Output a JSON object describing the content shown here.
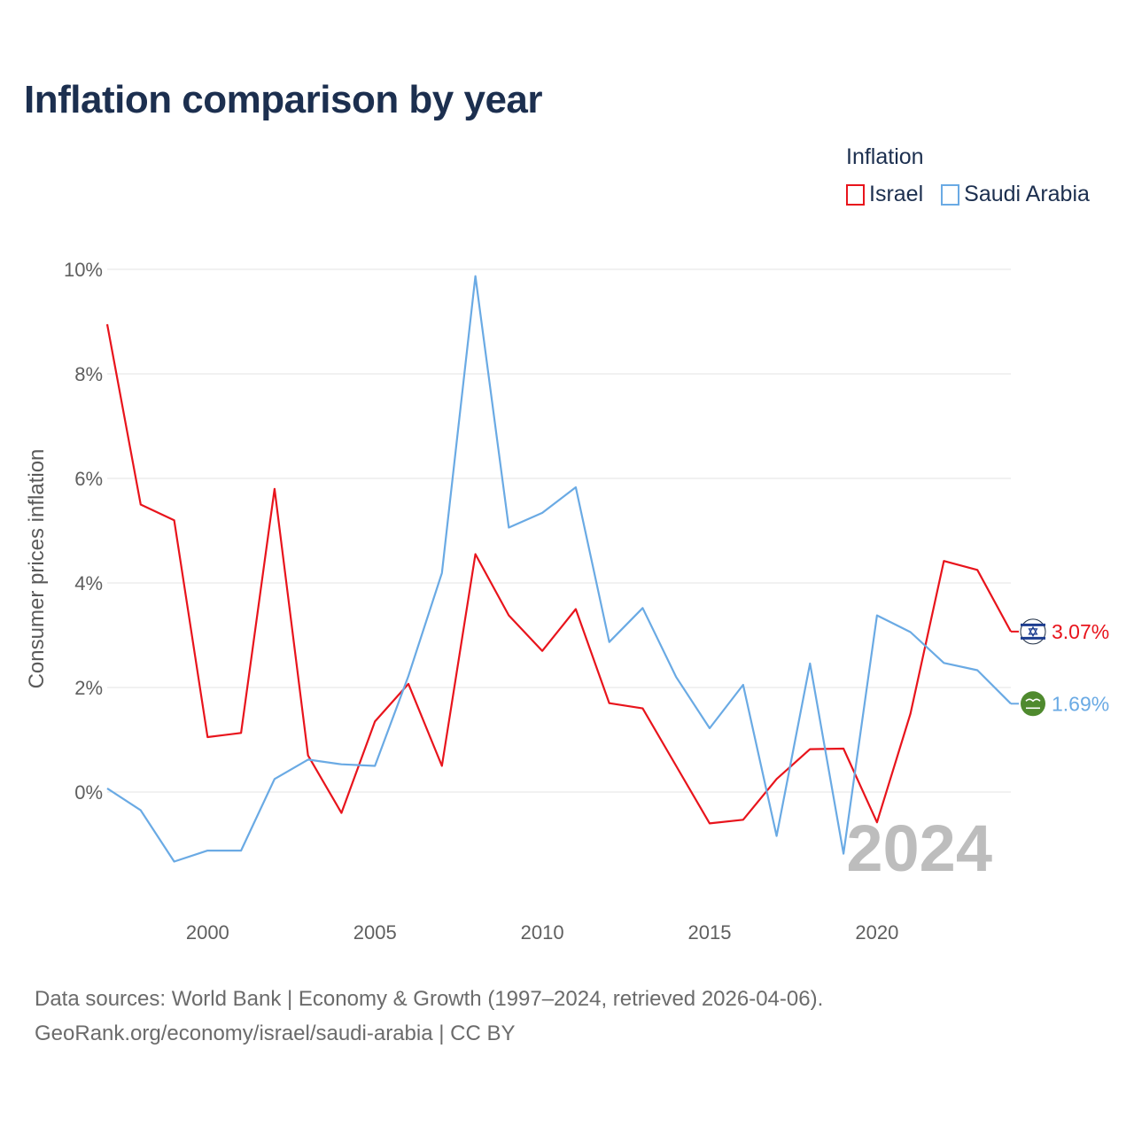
{
  "title": "Inflation comparison by year",
  "legend": {
    "title": "Inflation",
    "items": [
      {
        "label": "Israel",
        "color": "#e8141c"
      },
      {
        "label": "Saudi Arabia",
        "color": "#6aaae4"
      }
    ]
  },
  "year_watermark": "2024",
  "source": {
    "line1": "Data sources: World Bank | Economy & Growth (1997–2024, retrieved 2026-04-06).",
    "line2": "GeoRank.org/economy/israel/saudi-arabia | CC BY"
  },
  "chart_data": {
    "type": "line",
    "title": "Inflation comparison by year",
    "xlabel": "",
    "ylabel": "Consumer prices inflation",
    "x": [
      1997,
      1998,
      1999,
      2000,
      2001,
      2002,
      2003,
      2004,
      2005,
      2006,
      2007,
      2008,
      2009,
      2010,
      2011,
      2012,
      2013,
      2014,
      2015,
      2016,
      2017,
      2018,
      2019,
      2020,
      2021,
      2022,
      2023,
      2024
    ],
    "xlim": [
      1997,
      2024
    ],
    "ylim": [
      -2,
      10
    ],
    "yticks": [
      0,
      2,
      4,
      6,
      8,
      10
    ],
    "ytick_labels": [
      "0%",
      "2%",
      "4%",
      "6%",
      "8%",
      "10%"
    ],
    "xticks": [
      2000,
      2005,
      2010,
      2015,
      2020
    ],
    "xtick_labels": [
      "2000",
      "2005",
      "2010",
      "2015",
      "2020"
    ],
    "grid": true,
    "legend_position": "top-right",
    "series": [
      {
        "name": "Israel",
        "color": "#e8141c",
        "values": [
          8.95,
          5.5,
          5.2,
          1.05,
          1.13,
          5.8,
          0.7,
          -0.4,
          1.35,
          2.07,
          0.5,
          4.55,
          3.38,
          2.7,
          3.5,
          1.7,
          1.6,
          0.5,
          -0.6,
          -0.53,
          0.25,
          0.82,
          0.83,
          -0.58,
          1.5,
          4.42,
          4.25,
          3.07
        ],
        "end_label": "3.07%",
        "flag_icon": "israel-flag-icon"
      },
      {
        "name": "Saudi Arabia",
        "color": "#6aaae4",
        "values": [
          0.07,
          -0.35,
          -1.33,
          -1.12,
          -1.12,
          0.25,
          0.62,
          0.53,
          0.5,
          2.22,
          4.19,
          9.87,
          5.06,
          5.34,
          5.83,
          2.87,
          3.52,
          2.2,
          1.22,
          2.05,
          -0.84,
          2.46,
          -1.18,
          3.38,
          3.06,
          2.47,
          2.33,
          1.69
        ],
        "end_label": "1.69%",
        "flag_icon": "saudi-flag-icon"
      }
    ]
  }
}
